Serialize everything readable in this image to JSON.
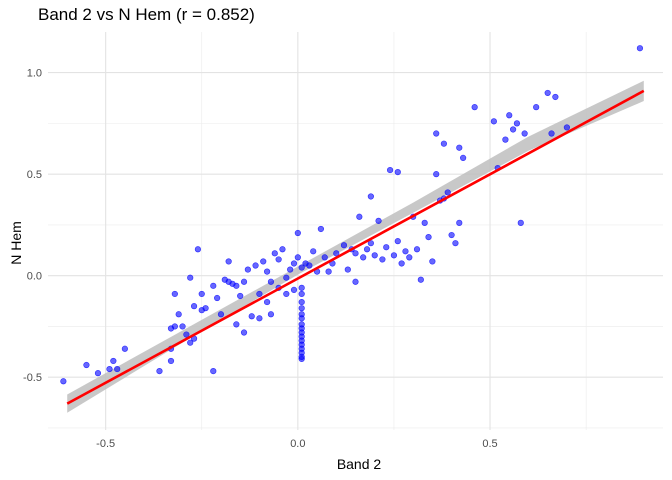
{
  "chart_data": {
    "type": "scatter",
    "title": "Band 2 vs N Hem (r = 0.852)",
    "xlabel": "Band 2",
    "ylabel": "N Hem",
    "xlim": [
      -0.65,
      0.95
    ],
    "ylim": [
      -0.76,
      1.2
    ],
    "x_ticks": [
      -0.5,
      0.0,
      0.5
    ],
    "x_tick_labels": [
      "-0.5",
      "0.0",
      "0.5"
    ],
    "y_ticks": [
      -0.5,
      0.0,
      0.5,
      1.0
    ],
    "y_tick_labels": [
      "-0.5",
      "0.0",
      "0.5",
      "1.0"
    ],
    "grid": true,
    "point_color": "#0000ff",
    "fit_line_color": "#ff0000",
    "confidence_band_color": "#bebebe",
    "fit_line": {
      "x": [
        -0.6,
        0.9
      ],
      "y": [
        -0.63,
        0.91
      ]
    },
    "confidence_band": {
      "x": [
        -0.6,
        -0.3,
        0.0,
        0.3,
        0.6,
        0.9
      ],
      "lower": [
        -0.675,
        -0.33,
        0.005,
        0.31,
        0.615,
        0.86
      ],
      "upper": [
        -0.585,
        -0.27,
        0.045,
        0.36,
        0.685,
        0.96
      ]
    },
    "points": [
      [
        -0.61,
        -0.52
      ],
      [
        -0.55,
        -0.44
      ],
      [
        -0.52,
        -0.48
      ],
      [
        -0.49,
        -0.46
      ],
      [
        -0.48,
        -0.42
      ],
      [
        -0.47,
        -0.46
      ],
      [
        -0.45,
        -0.36
      ],
      [
        -0.36,
        -0.47
      ],
      [
        -0.33,
        -0.42
      ],
      [
        -0.33,
        -0.36
      ],
      [
        -0.33,
        -0.26
      ],
      [
        -0.32,
        -0.25
      ],
      [
        -0.31,
        -0.19
      ],
      [
        -0.32,
        -0.09
      ],
      [
        -0.3,
        -0.25
      ],
      [
        -0.29,
        -0.29
      ],
      [
        -0.28,
        -0.33
      ],
      [
        -0.27,
        -0.31
      ],
      [
        -0.27,
        -0.15
      ],
      [
        -0.28,
        -0.01
      ],
      [
        -0.26,
        0.13
      ],
      [
        -0.25,
        -0.17
      ],
      [
        -0.25,
        -0.09
      ],
      [
        -0.24,
        -0.16
      ],
      [
        -0.22,
        -0.05
      ],
      [
        -0.21,
        -0.11
      ],
      [
        -0.22,
        -0.47
      ],
      [
        -0.2,
        -0.19
      ],
      [
        -0.19,
        -0.02
      ],
      [
        -0.18,
        -0.03
      ],
      [
        -0.18,
        0.07
      ],
      [
        -0.17,
        -0.04
      ],
      [
        -0.16,
        -0.05
      ],
      [
        -0.16,
        -0.24
      ],
      [
        -0.15,
        -0.1
      ],
      [
        -0.14,
        -0.03
      ],
      [
        -0.14,
        -0.28
      ],
      [
        -0.13,
        0.03
      ],
      [
        -0.12,
        -0.2
      ],
      [
        -0.11,
        0.05
      ],
      [
        -0.1,
        -0.09
      ],
      [
        -0.1,
        -0.21
      ],
      [
        -0.09,
        0.07
      ],
      [
        -0.08,
        0.02
      ],
      [
        -0.08,
        -0.13
      ],
      [
        -0.07,
        -0.03
      ],
      [
        -0.07,
        -0.19
      ],
      [
        -0.06,
        0.11
      ],
      [
        -0.05,
        0.08
      ],
      [
        -0.05,
        -0.06
      ],
      [
        -0.04,
        0.13
      ],
      [
        -0.03,
        -0.01
      ],
      [
        -0.03,
        -0.09
      ],
      [
        -0.02,
        0.03
      ],
      [
        -0.01,
        0.06
      ],
      [
        -0.01,
        -0.07
      ],
      [
        0.0,
        0.21
      ],
      [
        0.0,
        0.09
      ],
      [
        0.01,
        0.04
      ],
      [
        0.02,
        0.06
      ],
      [
        0.03,
        0.05
      ],
      [
        0.04,
        0.12
      ],
      [
        0.05,
        0.02
      ],
      [
        0.06,
        0.23
      ],
      [
        0.07,
        0.09
      ],
      [
        0.08,
        0.02
      ],
      [
        0.09,
        0.06
      ],
      [
        0.1,
        0.11
      ],
      [
        0.12,
        0.15
      ],
      [
        0.13,
        0.03
      ],
      [
        0.14,
        0.13
      ],
      [
        0.15,
        0.11
      ],
      [
        0.15,
        -0.03
      ],
      [
        0.16,
        0.29
      ],
      [
        0.17,
        0.09
      ],
      [
        0.18,
        0.13
      ],
      [
        0.19,
        0.39
      ],
      [
        0.19,
        0.16
      ],
      [
        0.2,
        0.1
      ],
      [
        0.21,
        0.27
      ],
      [
        0.22,
        0.08
      ],
      [
        0.23,
        0.14
      ],
      [
        0.24,
        0.52
      ],
      [
        0.25,
        0.1
      ],
      [
        0.26,
        0.51
      ],
      [
        0.26,
        0.17
      ],
      [
        0.27,
        0.06
      ],
      [
        0.28,
        0.12
      ],
      [
        0.29,
        0.09
      ],
      [
        0.3,
        0.29
      ],
      [
        0.31,
        0.13
      ],
      [
        0.32,
        -0.02
      ],
      [
        0.33,
        0.26
      ],
      [
        0.34,
        0.19
      ],
      [
        0.35,
        0.07
      ],
      [
        0.36,
        0.7
      ],
      [
        0.36,
        0.5
      ],
      [
        0.37,
        0.37
      ],
      [
        0.38,
        0.65
      ],
      [
        0.38,
        0.38
      ],
      [
        0.39,
        0.41
      ],
      [
        0.4,
        0.2
      ],
      [
        0.41,
        0.16
      ],
      [
        0.42,
        0.63
      ],
      [
        0.42,
        0.26
      ],
      [
        0.43,
        0.58
      ],
      [
        0.46,
        0.83
      ],
      [
        0.51,
        0.76
      ],
      [
        0.52,
        0.53
      ],
      [
        0.54,
        0.67
      ],
      [
        0.55,
        0.79
      ],
      [
        0.56,
        0.72
      ],
      [
        0.57,
        0.75
      ],
      [
        0.58,
        0.26
      ],
      [
        0.59,
        0.7
      ],
      [
        0.62,
        0.83
      ],
      [
        0.65,
        0.9
      ],
      [
        0.66,
        0.7
      ],
      [
        0.67,
        0.88
      ],
      [
        0.7,
        0.73
      ],
      [
        0.89,
        1.12
      ],
      [
        0.01,
        -0.06
      ],
      [
        0.01,
        -0.09
      ],
      [
        0.01,
        -0.13
      ],
      [
        0.01,
        -0.16
      ],
      [
        0.01,
        -0.19
      ],
      [
        0.01,
        -0.21
      ],
      [
        0.01,
        -0.24
      ],
      [
        0.01,
        -0.26
      ],
      [
        0.01,
        -0.28
      ],
      [
        0.01,
        -0.3
      ],
      [
        0.01,
        -0.32
      ],
      [
        0.01,
        -0.34
      ],
      [
        0.01,
        -0.36
      ],
      [
        0.01,
        -0.38
      ],
      [
        0.01,
        -0.4
      ],
      [
        0.01,
        -0.41
      ]
    ]
  }
}
